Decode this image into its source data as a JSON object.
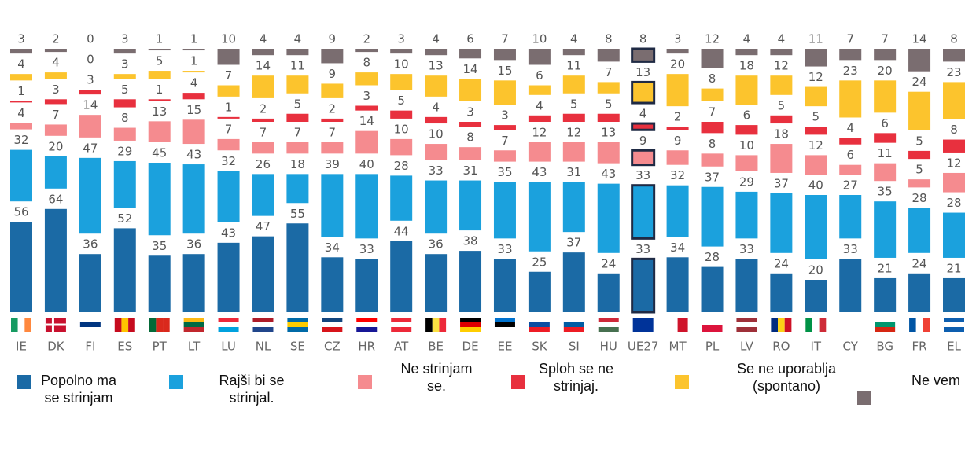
{
  "chart_data": {
    "type": "floating-stacked-bar",
    "categories": [
      "IE",
      "DK",
      "FI",
      "ES",
      "PT",
      "LT",
      "LU",
      "NL",
      "SE",
      "CZ",
      "HR",
      "AT",
      "BE",
      "DE",
      "EE",
      "SK",
      "SI",
      "HU",
      "UE27",
      "MT",
      "PL",
      "LV",
      "RO",
      "IT",
      "CY",
      "BG",
      "FR",
      "EL"
    ],
    "highlight": "UE27",
    "series": [
      {
        "name": "Popolno ma se strinjam",
        "color": "#1b6aa5",
        "values": [
          56,
          64,
          36,
          52,
          35,
          36,
          43,
          47,
          55,
          34,
          33,
          44,
          36,
          38,
          33,
          25,
          37,
          24,
          33,
          34,
          28,
          33,
          24,
          20,
          33,
          21,
          24,
          21
        ]
      },
      {
        "name": "Rajši bi se strinjal.",
        "color": "#1ba1dd",
        "values": [
          32,
          20,
          47,
          29,
          45,
          43,
          32,
          26,
          18,
          39,
          40,
          28,
          33,
          31,
          35,
          43,
          31,
          43,
          33,
          32,
          37,
          29,
          37,
          40,
          27,
          35,
          28,
          28
        ]
      },
      {
        "name": "Ne strinjam se.",
        "color": "#f58b8f",
        "values": [
          4,
          7,
          14,
          8,
          13,
          15,
          7,
          7,
          7,
          7,
          14,
          10,
          10,
          8,
          7,
          12,
          12,
          13,
          9,
          9,
          8,
          10,
          18,
          12,
          6,
          11,
          5,
          12
        ]
      },
      {
        "name": "Sploh se ne strinjaj.",
        "color": "#e8303e",
        "values": [
          1,
          3,
          3,
          5,
          1,
          4,
          1,
          2,
          5,
          2,
          3,
          5,
          4,
          3,
          3,
          4,
          5,
          5,
          4,
          2,
          7,
          6,
          5,
          5,
          4,
          6,
          5,
          8
        ]
      },
      {
        "name": "Se ne uporablja (spontano)",
        "color": "#fcc42d",
        "values": [
          4,
          4,
          0,
          3,
          5,
          1,
          7,
          14,
          11,
          9,
          8,
          10,
          13,
          14,
          15,
          6,
          11,
          7,
          13,
          20,
          8,
          18,
          12,
          12,
          23,
          20,
          24,
          23
        ]
      },
      {
        "name": "Ne vem",
        "color": "#7a6d70",
        "values": [
          3,
          2,
          0,
          3,
          1,
          1,
          10,
          4,
          4,
          9,
          2,
          3,
          4,
          6,
          7,
          10,
          4,
          8,
          8,
          3,
          12,
          4,
          4,
          11,
          7,
          7,
          14,
          8
        ]
      }
    ]
  }
}
